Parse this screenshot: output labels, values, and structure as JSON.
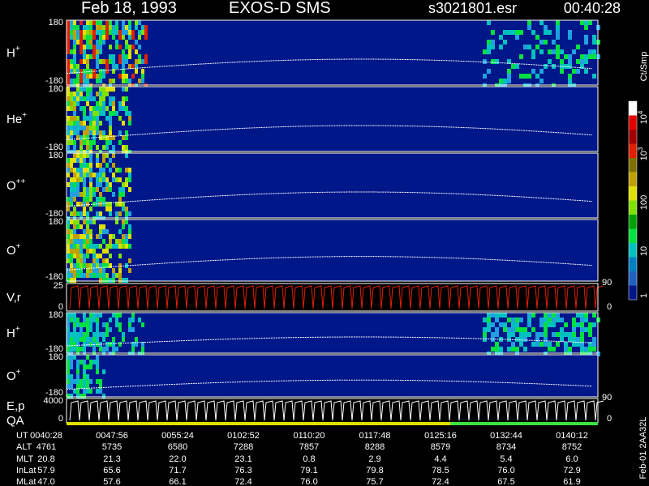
{
  "header": {
    "date": "Feb 18, 1993",
    "instrument": "EXOS-D SMS",
    "file": "s3021801.esr",
    "time": "00:40:28"
  },
  "panels": [
    {
      "label": "H",
      "sup": "+",
      "top": "180",
      "bottom": "-180"
    },
    {
      "label": "He",
      "sup": "+",
      "top": "180",
      "bottom": "-180"
    },
    {
      "label": "O",
      "sup": "++",
      "top": "180",
      "bottom": "-180"
    },
    {
      "label": "O",
      "sup": "+",
      "top": "180",
      "bottom": "-180"
    },
    {
      "label": "V,r",
      "top": "25",
      "bottom": "0",
      "right_top": "90",
      "right_bottom": "0"
    },
    {
      "label": "H",
      "sup": "+",
      "top": "180",
      "bottom": "-180"
    },
    {
      "label": "O",
      "sup": "+",
      "top": "180",
      "bottom": "-180"
    },
    {
      "label": "E,p",
      "label2": "QA",
      "top": "4000",
      "bottom": "0",
      "right_top": "90",
      "right_bottom": "0"
    }
  ],
  "table": {
    "rows": [
      {
        "label": "UT",
        "values": [
          "0040:28",
          "0047:56",
          "0055:24",
          "0102:52",
          "0110:20",
          "0117:48",
          "0125:16",
          "0132:44",
          "0140:12"
        ]
      },
      {
        "label": "ALT",
        "values": [
          "4761",
          "5735",
          "6580",
          "7288",
          "7857",
          "8288",
          "8579",
          "8734",
          "8752"
        ]
      },
      {
        "label": "MLT",
        "values": [
          "20.8",
          "21.3",
          "22.0",
          "23.1",
          "0.8",
          "2.9",
          "4.4",
          "5.4",
          "6.0"
        ]
      },
      {
        "label": "InLat",
        "values": [
          "57.9",
          "65.6",
          "71.7",
          "76.3",
          "79.1",
          "79.8",
          "78.5",
          "76.0",
          "72.9"
        ]
      },
      {
        "label": "MLat",
        "values": [
          "47.0",
          "57.6",
          "66.1",
          "72.4",
          "76.0",
          "75.7",
          "72.4",
          "67.5",
          "61.9"
        ]
      }
    ]
  },
  "colorbar": {
    "unit": "Ct/Smp",
    "labels": [
      {
        "base": "10",
        "exp": "4"
      },
      {
        "base": "10",
        "exp": "3"
      },
      {
        "base": "100"
      },
      {
        "base": "10"
      },
      {
        "base": "1"
      }
    ]
  },
  "footer": "Feb-01 2AA32L"
}
